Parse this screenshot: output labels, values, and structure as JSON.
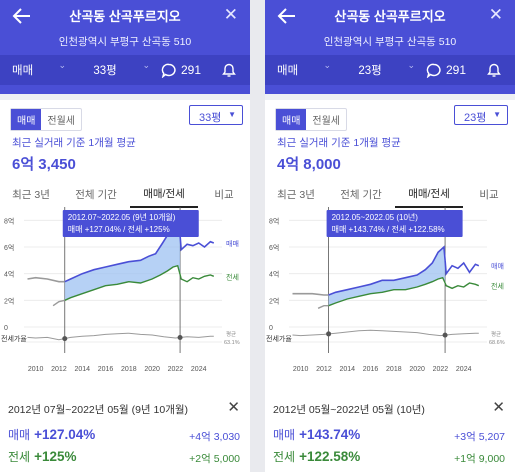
{
  "panels": [
    {
      "title": "산곡동 산곡푸르지오",
      "address": "인천광역시 부평구 산곡동 510",
      "deal_filter": "매매",
      "size_filter": "33평",
      "talk_count": "291",
      "segment": {
        "sale": "매매",
        "jeonse": "전월세"
      },
      "size_select": "33평",
      "avg_label": "최근 실거래 기준 1개월 평균",
      "avg_value": "6억 3,450",
      "tabs": [
        "최근 3년",
        "전체 기간",
        "매매/전세",
        "비교"
      ],
      "tooltip": {
        "period": "2012.07~2022.05 (9년 10개월)",
        "rates": "매매 +127.04% / 전세 +125%"
      },
      "legend": {
        "sale": "매매",
        "jeonse": "전세",
        "ratio_title": "전세가율",
        "ratio_label": "평균",
        "ratio_value": "63.1%"
      },
      "info": {
        "range": "2012년 07월~2022년 05월 (9년 10개월)",
        "sale_label": "매매",
        "sale_pct": "+127.04%",
        "sale_amt": "+4억 3,030",
        "jeonse_label": "전세",
        "jeonse_pct": "+125%",
        "jeonse_amt": "+2억 5,000"
      },
      "chart_data": {
        "type": "line",
        "y_ticks": [
          "8억",
          "6억",
          "4억",
          "2억",
          "0"
        ],
        "ylim": [
          0,
          9
        ],
        "x_ticks": [
          "2010",
          "2012",
          "2014",
          "2016",
          "2018",
          "2020",
          "2022",
          "2024"
        ],
        "xlim": [
          2009,
          2026
        ],
        "selection": [
          2012.5,
          2022.4
        ],
        "series": [
          {
            "name": "매매",
            "x": [
              2009.3,
              2010,
              2011,
              2012,
              2012.5,
              2013,
              2014,
              2015,
              2016,
              2017,
              2018,
              2019,
              2019.7,
              2020.3,
              2020.9,
              2021.4,
              2021.9,
              2022.3,
              2022.5,
              2023,
              2023.5,
              2024,
              2024.5,
              2025,
              2025.3
            ],
            "values": [
              3.6,
              3.7,
              3.6,
              3.4,
              3.4,
              3.6,
              4.0,
              4.3,
              4.5,
              4.7,
              4.9,
              5.0,
              5.3,
              5.5,
              6.3,
              7.0,
              7.6,
              7.9,
              5.8,
              6.2,
              6.1,
              6.3,
              6.0,
              6.4,
              6.3
            ]
          },
          {
            "name": "전세",
            "x": [
              2011.5,
              2012,
              2012.5,
              2013,
              2014,
              2015,
              2016,
              2017,
              2018,
              2019,
              2020,
              2020.7,
              2021.3,
              2021.8,
              2022.2,
              2022.5,
              2023,
              2023.5,
              2024,
              2024.5,
              2025,
              2025.3
            ],
            "values": [
              1.6,
              1.9,
              2.0,
              2.2,
              2.5,
              2.8,
              3.1,
              3.2,
              3.4,
              3.3,
              3.6,
              3.9,
              4.2,
              4.5,
              4.6,
              3.6,
              3.4,
              3.7,
              3.6,
              3.8,
              3.9,
              3.8
            ]
          },
          {
            "name": "전세가율",
            "x": [
              2009.3,
              2010,
              2011,
              2012,
              2013,
              2014,
              2015,
              2016,
              2017,
              2018,
              2019,
              2020,
              2021,
              2022,
              2023,
              2024,
              2025,
              2025.3
            ],
            "values": [
              61,
              60,
              61,
              57,
              61,
              63,
              64,
              66,
              67,
              68,
              66,
              65,
              62,
              60,
              62,
              61,
              63,
              63
            ]
          }
        ]
      },
      "colors": {
        "sale": "#4a4fd6",
        "jeonse": "#3a8a3a",
        "fill": "#9ec2f2",
        "ratio": "#9a9a9a"
      }
    },
    {
      "title": "산곡동 산곡푸르지오",
      "address": "인천광역시 부평구 산곡동 510",
      "deal_filter": "매매",
      "size_filter": "23평",
      "talk_count": "291",
      "segment": {
        "sale": "매매",
        "jeonse": "전월세"
      },
      "size_select": "23평",
      "avg_label": "최근 실거래 기준 1개월 평균",
      "avg_value": "4억 8,000",
      "tabs": [
        "최근 3년",
        "전체 기간",
        "매매/전세",
        "비교"
      ],
      "tooltip": {
        "period": "2012.05~2022.05 (10년)",
        "rates": "매매 +143.74% / 전세 +122.58%"
      },
      "legend": {
        "sale": "매매",
        "jeonse": "전세",
        "ratio_title": "전세가율",
        "ratio_label": "평균",
        "ratio_value": "68.6%"
      },
      "info": {
        "range": "2012년 05월~2022년 05월 (10년)",
        "sale_label": "매매",
        "sale_pct": "+143.74%",
        "sale_amt": "+3억 5,207",
        "jeonse_label": "전세",
        "jeonse_pct": "+122.58%",
        "jeonse_amt": "+1억 9,000"
      },
      "chart_data": {
        "type": "line",
        "y_ticks": [
          "8억",
          "6억",
          "4억",
          "2억",
          "0"
        ],
        "ylim": [
          0,
          9
        ],
        "x_ticks": [
          "2010",
          "2012",
          "2014",
          "2016",
          "2018",
          "2020",
          "2022",
          "2024"
        ],
        "xlim": [
          2009,
          2026
        ],
        "selection": [
          2012.4,
          2022.4
        ],
        "series": [
          {
            "name": "매매",
            "x": [
              2009.3,
              2010,
              2011,
              2012,
              2012.4,
              2013,
              2014,
              2015,
              2016,
              2017,
              2018,
              2019,
              2020,
              2020.7,
              2021.3,
              2021.8,
              2022.3,
              2022.5,
              2023,
              2023.5,
              2024,
              2024.5,
              2025,
              2025.3
            ],
            "values": [
              2.5,
              2.5,
              2.5,
              2.4,
              2.4,
              2.6,
              2.8,
              3.0,
              3.2,
              3.5,
              3.5,
              3.7,
              3.9,
              4.3,
              4.8,
              5.6,
              6.0,
              4.0,
              4.6,
              4.4,
              4.8,
              4.1,
              4.7,
              4.6
            ]
          },
          {
            "name": "전세",
            "x": [
              2011.5,
              2012,
              2012.4,
              2013,
              2014,
              2015,
              2016,
              2017,
              2018,
              2019,
              2020,
              2020.7,
              2021.3,
              2021.8,
              2022.2,
              2022.5,
              2023,
              2023.5,
              2024,
              2024.5,
              2025,
              2025.3
            ],
            "values": [
              1.4,
              1.6,
              1.6,
              1.8,
              2.1,
              2.3,
              2.5,
              2.6,
              2.8,
              2.8,
              3.0,
              3.2,
              3.4,
              3.6,
              3.7,
              3.1,
              2.9,
              3.1,
              3.0,
              3.3,
              3.2,
              3.1
            ]
          },
          {
            "name": "전세가율",
            "x": [
              2009.3,
              2010,
              2011,
              2012,
              2013,
              2014,
              2015,
              2016,
              2017,
              2018,
              2019,
              2020,
              2021,
              2022,
              2023,
              2024,
              2025,
              2025.3
            ],
            "values": [
              65,
              64,
              65,
              66,
              68,
              70,
              72,
              73,
              72,
              71,
              70,
              69,
              66,
              64,
              66,
              67,
              68,
              68
            ]
          }
        ]
      },
      "colors": {
        "sale": "#4a4fd6",
        "jeonse": "#3a8a3a",
        "fill": "#9ec2f2",
        "ratio": "#9a9a9a"
      }
    }
  ]
}
